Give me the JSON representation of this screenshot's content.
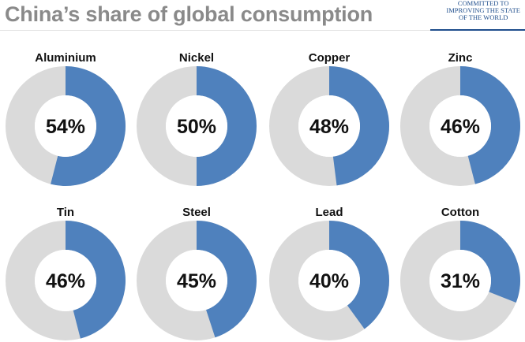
{
  "header": {
    "title": "China’s share of global consumption",
    "brand_line1": "COMMITTED TO",
    "brand_line2": "IMPROVING THE STATE",
    "brand_line3": "OF THE WORLD"
  },
  "colors": {
    "share": "#4f81bd",
    "rest": "#dadada",
    "center": "#ffffff"
  },
  "chart_data": {
    "type": "pie",
    "title": "China’s share of global consumption",
    "categories": [
      "Aluminium",
      "Nickel",
      "Copper",
      "Zinc",
      "Tin",
      "Steel",
      "Lead",
      "Cotton"
    ],
    "values": [
      54,
      50,
      48,
      46,
      46,
      45,
      40,
      31
    ],
    "value_labels": [
      "54%",
      "50%",
      "48%",
      "46%",
      "46%",
      "45%",
      "40%",
      "31%"
    ],
    "unit": "%",
    "total": 100
  }
}
